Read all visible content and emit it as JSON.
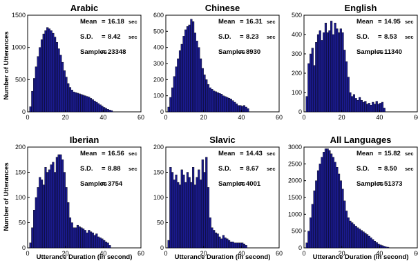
{
  "figure": {
    "ylabel": "Number of Utterances",
    "xlabel": "Utterance Duration (in second)"
  },
  "chart_data": [
    {
      "type": "bar",
      "title": "Arabic",
      "stats": {
        "mean_label": "Mean",
        "mean_value": "16.18",
        "mean_unit": "sec",
        "sd_label": "S.D.",
        "sd_value": "8.42",
        "sd_unit": "sec",
        "samples_label": "Samples",
        "samples_value": "23348"
      },
      "xlim": [
        0,
        60
      ],
      "ylim": [
        0,
        1500
      ],
      "xticks": [
        0,
        20,
        40,
        60
      ],
      "yticks": [
        0,
        500,
        1000,
        1500
      ],
      "x": [
        1.5,
        2.5,
        3.5,
        4.5,
        5.5,
        6.5,
        7.5,
        8.5,
        9.5,
        10.5,
        11.5,
        12.5,
        13.5,
        14.5,
        15.5,
        16.5,
        17.5,
        18.5,
        19.5,
        20.5,
        21.5,
        22.5,
        23.5,
        24.5,
        25.5,
        26.5,
        27.5,
        28.5,
        29.5,
        30.5,
        31.5,
        32.5,
        33.5,
        34.5,
        35.5,
        36.5,
        37.5,
        38.5,
        39.5,
        40.5,
        41.5,
        42.5,
        43.5,
        44.5
      ],
      "values": [
        80,
        320,
        520,
        700,
        860,
        1000,
        1120,
        1210,
        1260,
        1310,
        1290,
        1260,
        1220,
        1160,
        1080,
        980,
        880,
        770,
        640,
        540,
        440,
        380,
        340,
        310,
        300,
        290,
        280,
        270,
        260,
        250,
        240,
        230,
        210,
        190,
        170,
        150,
        130,
        110,
        90,
        70,
        55,
        40,
        30,
        20
      ]
    },
    {
      "type": "bar",
      "title": "Chinese",
      "stats": {
        "mean_label": "Mean",
        "mean_value": "16.31",
        "mean_unit": "sec",
        "sd_label": "S.D.",
        "sd_value": "8.23",
        "sd_unit": "sec",
        "samples_label": "Samples",
        "samples_value": "8930"
      },
      "xlim": [
        0,
        60
      ],
      "ylim": [
        0,
        600
      ],
      "xticks": [
        0,
        20,
        40,
        60
      ],
      "yticks": [
        0,
        100,
        200,
        300,
        400,
        500,
        600
      ],
      "x": [
        1.5,
        2.5,
        3.5,
        4.5,
        5.5,
        6.5,
        7.5,
        8.5,
        9.5,
        10.5,
        11.5,
        12.5,
        13.5,
        14.5,
        15.5,
        16.5,
        17.5,
        18.5,
        19.5,
        20.5,
        21.5,
        22.5,
        23.5,
        24.5,
        25.5,
        26.5,
        27.5,
        28.5,
        29.5,
        30.5,
        31.5,
        32.5,
        33.5,
        34.5,
        35.5,
        36.5,
        37.5,
        38.5,
        39.5,
        40.5,
        41.5,
        42.5,
        43.5
      ],
      "values": [
        30,
        90,
        150,
        220,
        280,
        330,
        380,
        420,
        470,
        510,
        530,
        540,
        575,
        560,
        490,
        440,
        400,
        330,
        270,
        230,
        200,
        170,
        150,
        140,
        130,
        125,
        120,
        115,
        110,
        100,
        95,
        90,
        85,
        80,
        70,
        60,
        50,
        40,
        40,
        35,
        40,
        30,
        20
      ]
    },
    {
      "type": "bar",
      "title": "English",
      "stats": {
        "mean_label": "Mean",
        "mean_value": "14.95",
        "mean_unit": "sec",
        "sd_label": "S.D.",
        "sd_value": "8.53",
        "sd_unit": "sec",
        "samples_label": "Samples",
        "samples_value": "11340"
      },
      "xlim": [
        0,
        60
      ],
      "ylim": [
        0,
        500
      ],
      "xticks": [
        0,
        20,
        40,
        60
      ],
      "yticks": [
        0,
        100,
        200,
        300,
        400,
        500
      ],
      "x": [
        1.5,
        2.5,
        3.5,
        4.5,
        5.5,
        6.5,
        7.5,
        8.5,
        9.5,
        10.5,
        11.5,
        12.5,
        13.5,
        14.5,
        15.5,
        16.5,
        17.5,
        18.5,
        19.5,
        20.5,
        21.5,
        22.5,
        23.5,
        24.5,
        25.5,
        26.5,
        27.5,
        28.5,
        29.5,
        30.5,
        31.5,
        32.5,
        33.5,
        34.5,
        35.5,
        36.5,
        37.5,
        38.5,
        39.5,
        40.5,
        41.5,
        42.5
      ],
      "values": [
        80,
        250,
        300,
        330,
        240,
        360,
        400,
        420,
        370,
        410,
        460,
        410,
        420,
        470,
        400,
        460,
        430,
        410,
        430,
        410,
        320,
        260,
        180,
        100,
        80,
        90,
        70,
        60,
        75,
        60,
        50,
        55,
        40,
        45,
        35,
        50,
        40,
        55,
        40,
        45,
        50,
        20
      ]
    },
    {
      "type": "bar",
      "title": "Iberian",
      "stats": {
        "mean_label": "Mean",
        "mean_value": "16.56",
        "mean_unit": "sec",
        "sd_label": "S.D.",
        "sd_value": "8.88",
        "sd_unit": "sec",
        "samples_label": "Samples",
        "samples_value": "3754"
      },
      "xlim": [
        0,
        60
      ],
      "ylim": [
        0,
        200
      ],
      "xticks": [
        0,
        20,
        40,
        60
      ],
      "yticks": [
        0,
        50,
        100,
        150,
        200
      ],
      "x": [
        1.5,
        2.5,
        3.5,
        4.5,
        5.5,
        6.5,
        7.5,
        8.5,
        9.5,
        10.5,
        11.5,
        12.5,
        13.5,
        14.5,
        15.5,
        16.5,
        17.5,
        18.5,
        19.5,
        20.5,
        21.5,
        22.5,
        23.5,
        24.5,
        25.5,
        26.5,
        27.5,
        28.5,
        29.5,
        30.5,
        31.5,
        32.5,
        33.5,
        34.5,
        35.5,
        36.5,
        37.5,
        38.5,
        39.5,
        40.5,
        41.5,
        42.5,
        43.5
      ],
      "values": [
        10,
        40,
        75,
        100,
        120,
        140,
        135,
        125,
        160,
        150,
        155,
        165,
        170,
        150,
        180,
        185,
        185,
        175,
        150,
        120,
        90,
        60,
        50,
        40,
        40,
        45,
        42,
        40,
        38,
        35,
        30,
        35,
        32,
        30,
        25,
        28,
        22,
        20,
        18,
        15,
        12,
        10,
        5
      ]
    },
    {
      "type": "bar",
      "title": "Slavic",
      "stats": {
        "mean_label": "Mean",
        "mean_value": "14.43",
        "mean_unit": "sec",
        "sd_label": "S.D.",
        "sd_value": "8.67",
        "sd_unit": "sec",
        "samples_label": "Samples",
        "samples_value": "4001"
      },
      "xlim": [
        0,
        60
      ],
      "ylim": [
        0,
        200
      ],
      "xticks": [
        0,
        20,
        40,
        60
      ],
      "yticks": [
        0,
        50,
        100,
        150,
        200
      ],
      "x": [
        1.5,
        2.5,
        3.5,
        4.5,
        5.5,
        6.5,
        7.5,
        8.5,
        9.5,
        10.5,
        11.5,
        12.5,
        13.5,
        14.5,
        15.5,
        16.5,
        17.5,
        18.5,
        19.5,
        20.5,
        21.5,
        22.5,
        23.5,
        24.5,
        25.5,
        26.5,
        27.5,
        28.5,
        29.5,
        30.5,
        31.5,
        32.5,
        33.5,
        34.5,
        35.5,
        36.5,
        37.5,
        38.5,
        39.5,
        40.5,
        41.5,
        42.5
      ],
      "values": [
        15,
        160,
        150,
        135,
        145,
        130,
        125,
        155,
        145,
        130,
        150,
        140,
        130,
        160,
        125,
        140,
        155,
        135,
        175,
        150,
        180,
        120,
        60,
        40,
        35,
        30,
        28,
        22,
        18,
        25,
        20,
        18,
        15,
        12,
        12,
        10,
        10,
        10,
        10,
        10,
        8,
        5
      ]
    },
    {
      "type": "bar",
      "title": "All Languages",
      "stats": {
        "mean_label": "Mean",
        "mean_value": "15.82",
        "mean_unit": "sec",
        "sd_label": "S.D.",
        "sd_value": "8.50",
        "sd_unit": "sec",
        "samples_label": "Samples",
        "samples_value": "51373"
      },
      "xlim": [
        0,
        60
      ],
      "ylim": [
        0,
        3000
      ],
      "xticks": [
        0,
        20,
        40,
        60
      ],
      "yticks": [
        0,
        500,
        1000,
        1500,
        2000,
        2500,
        3000
      ],
      "x": [
        1.5,
        2.5,
        3.5,
        4.5,
        5.5,
        6.5,
        7.5,
        8.5,
        9.5,
        10.5,
        11.5,
        12.5,
        13.5,
        14.5,
        15.5,
        16.5,
        17.5,
        18.5,
        19.5,
        20.5,
        21.5,
        22.5,
        23.5,
        24.5,
        25.5,
        26.5,
        27.5,
        28.5,
        29.5,
        30.5,
        31.5,
        32.5,
        33.5,
        34.5,
        35.5,
        36.5,
        37.5,
        38.5,
        39.5,
        40.5,
        41.5,
        42.5,
        43.5,
        44.5
      ],
      "values": [
        150,
        500,
        900,
        1300,
        1700,
        2000,
        2300,
        2500,
        2700,
        2850,
        2950,
        2950,
        2900,
        2800,
        2700,
        2550,
        2400,
        2200,
        2000,
        1750,
        1400,
        1100,
        900,
        800,
        750,
        700,
        650,
        600,
        560,
        520,
        480,
        440,
        400,
        350,
        300,
        250,
        200,
        160,
        120,
        90,
        70,
        50,
        30,
        20
      ]
    }
  ]
}
